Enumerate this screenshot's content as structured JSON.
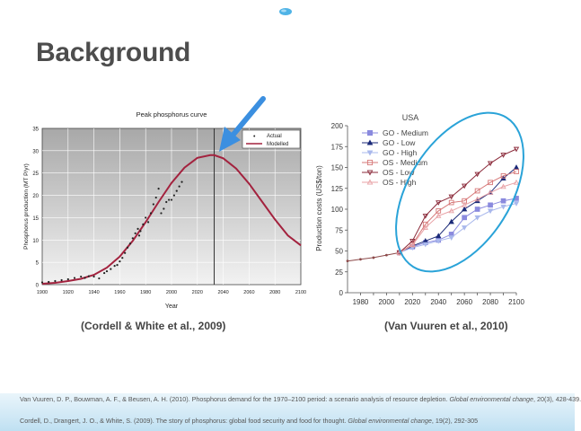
{
  "slide": {
    "title": "Background",
    "left_caption": "(Cordell & White et al., 2009)",
    "right_caption": "(Van Vuuren et al., 2010)",
    "references": [
      {
        "text": "Van Vuuren, D. P., Bouwman, A. F., & Beusen, A. H. (2010). Phosphorus demand for the 1970–2100 period: a scenario analysis of resource depletion. ",
        "journal": "Global environmental change",
        "tail": ", 20(3), 428-439."
      },
      {
        "text": "Cordell, D., Drangert, J. O., & White, S. (2009). The story of phosphorus: global food security and food for thought. ",
        "journal": "Global environmental change",
        "tail": ", 19(2), 292-305"
      }
    ],
    "colors": {
      "title": "#4d4d4d",
      "arrow": "#3b8fe0",
      "ellipse": "#2aa3d8",
      "footer": "#bfe0f2"
    }
  },
  "chart_data": [
    {
      "type": "line",
      "title": "Peak phosphorus curve",
      "xlabel": "Year",
      "ylabel": "Phosphorus production (MT P/yr)",
      "xlim": [
        1900,
        2100
      ],
      "ylim": [
        0,
        35
      ],
      "xticks": [
        1900,
        1920,
        1940,
        1960,
        1980,
        2000,
        2020,
        2040,
        2060,
        2080,
        2100
      ],
      "yticks": [
        0,
        5,
        10,
        15,
        20,
        25,
        30,
        35
      ],
      "legend_placement": "top-right",
      "peak_line_x": 2033,
      "series": [
        {
          "name": "Actual",
          "kind": "scatter",
          "color": "#222222",
          "x": [
            1900,
            1905,
            1910,
            1915,
            1920,
            1925,
            1930,
            1933,
            1936,
            1940,
            1944,
            1948,
            1950,
            1953,
            1956,
            1958,
            1960,
            1962,
            1964,
            1966,
            1968,
            1970,
            1972,
            1974,
            1975,
            1976,
            1978,
            1980,
            1982,
            1984,
            1986,
            1988,
            1990,
            1992,
            1994,
            1996,
            1998,
            2000,
            2002,
            2004,
            2006,
            2008
          ],
          "y": [
            0.5,
            0.6,
            0.8,
            1.0,
            1.2,
            1.5,
            1.8,
            1.5,
            1.9,
            1.8,
            1.4,
            2.6,
            3.0,
            3.5,
            4.2,
            4.4,
            5.2,
            6.0,
            7.1,
            8.3,
            9.2,
            10.4,
            11.5,
            12.5,
            11.0,
            12.0,
            13.5,
            15.0,
            14.0,
            16.0,
            18.0,
            19.5,
            21.5,
            16.0,
            17.0,
            18.5,
            19.0,
            19.0,
            20.0,
            21.0,
            22.0,
            23.0
          ]
        },
        {
          "name": "Modelled",
          "kind": "line",
          "color": "#a3223e",
          "x": [
            1900,
            1910,
            1920,
            1930,
            1940,
            1950,
            1960,
            1970,
            1980,
            1990,
            2000,
            2010,
            2020,
            2030,
            2033,
            2040,
            2050,
            2060,
            2070,
            2080,
            2090,
            2100
          ],
          "y": [
            0.2,
            0.4,
            0.8,
            1.3,
            2.2,
            3.8,
            6.3,
            9.8,
            14.0,
            18.5,
            22.8,
            26.2,
            28.4,
            29.0,
            29.0,
            28.3,
            26.0,
            22.6,
            18.6,
            14.6,
            11.0,
            8.8
          ]
        }
      ]
    },
    {
      "type": "line",
      "title": "USA",
      "xlabel": "",
      "ylabel": "Production costs (US$/ton)",
      "xlim": [
        1970,
        2100
      ],
      "ylim": [
        0,
        200
      ],
      "xticks": [
        1980,
        1990,
        2000,
        2010,
        2020,
        2030,
        2040,
        2050,
        2060,
        2070,
        2080,
        2090,
        2100
      ],
      "xtick_labels": [
        "1980",
        "",
        "2000",
        "",
        "2020",
        "",
        "2040",
        "",
        "2060",
        "",
        "2080",
        "",
        "2100"
      ],
      "yticks": [
        0,
        25,
        50,
        75,
        100,
        125,
        150,
        175,
        200
      ],
      "ytick_labels": [
        "0",
        "25",
        "50",
        "75",
        "100",
        "125",
        "150",
        "175",
        "200"
      ],
      "legend_placement": "top-left",
      "history": {
        "x": [
          1970,
          1980,
          1990,
          2000,
          2010
        ],
        "y": [
          38,
          40,
          42,
          45,
          48
        ],
        "color": "#8c4a4a"
      },
      "series": [
        {
          "name": "GO - Medium",
          "marker": "square",
          "filled": true,
          "color": "#8a8ade",
          "x": [
            2010,
            2020,
            2030,
            2040,
            2050,
            2060,
            2070,
            2080,
            2090,
            2100
          ],
          "y": [
            48,
            55,
            60,
            63,
            70,
            90,
            100,
            105,
            110,
            113
          ]
        },
        {
          "name": "GO - Low",
          "marker": "triangle-up",
          "filled": true,
          "color": "#1b2a78",
          "x": [
            2010,
            2020,
            2030,
            2040,
            2050,
            2060,
            2070,
            2080,
            2090,
            2100
          ],
          "y": [
            48,
            56,
            62,
            68,
            85,
            100,
            110,
            120,
            137,
            150
          ]
        },
        {
          "name": "GO - High",
          "marker": "triangle-down",
          "filled": true,
          "color": "#a9b8ec",
          "x": [
            2010,
            2020,
            2030,
            2040,
            2050,
            2060,
            2070,
            2080,
            2090,
            2100
          ],
          "y": [
            48,
            54,
            58,
            62,
            66,
            78,
            90,
            98,
            103,
            107
          ]
        },
        {
          "name": "OS - Medium",
          "marker": "square",
          "filled": false,
          "color": "#d67878",
          "x": [
            2010,
            2020,
            2030,
            2040,
            2050,
            2060,
            2070,
            2080,
            2090,
            2100
          ],
          "y": [
            48,
            58,
            82,
            98,
            108,
            110,
            122,
            132,
            140,
            145
          ]
        },
        {
          "name": "OS - Low",
          "marker": "triangle-down",
          "filled": false,
          "color": "#8b2a3a",
          "x": [
            2010,
            2020,
            2030,
            2040,
            2050,
            2060,
            2070,
            2080,
            2090,
            2100
          ],
          "y": [
            48,
            62,
            92,
            108,
            115,
            128,
            142,
            155,
            165,
            172
          ]
        },
        {
          "name": "OS - High",
          "marker": "triangle-up",
          "filled": false,
          "color": "#e8a2a6",
          "x": [
            2010,
            2020,
            2030,
            2040,
            2050,
            2060,
            2070,
            2080,
            2090,
            2100
          ],
          "y": [
            48,
            57,
            78,
            92,
            98,
            105,
            112,
            120,
            127,
            132
          ]
        }
      ]
    }
  ]
}
